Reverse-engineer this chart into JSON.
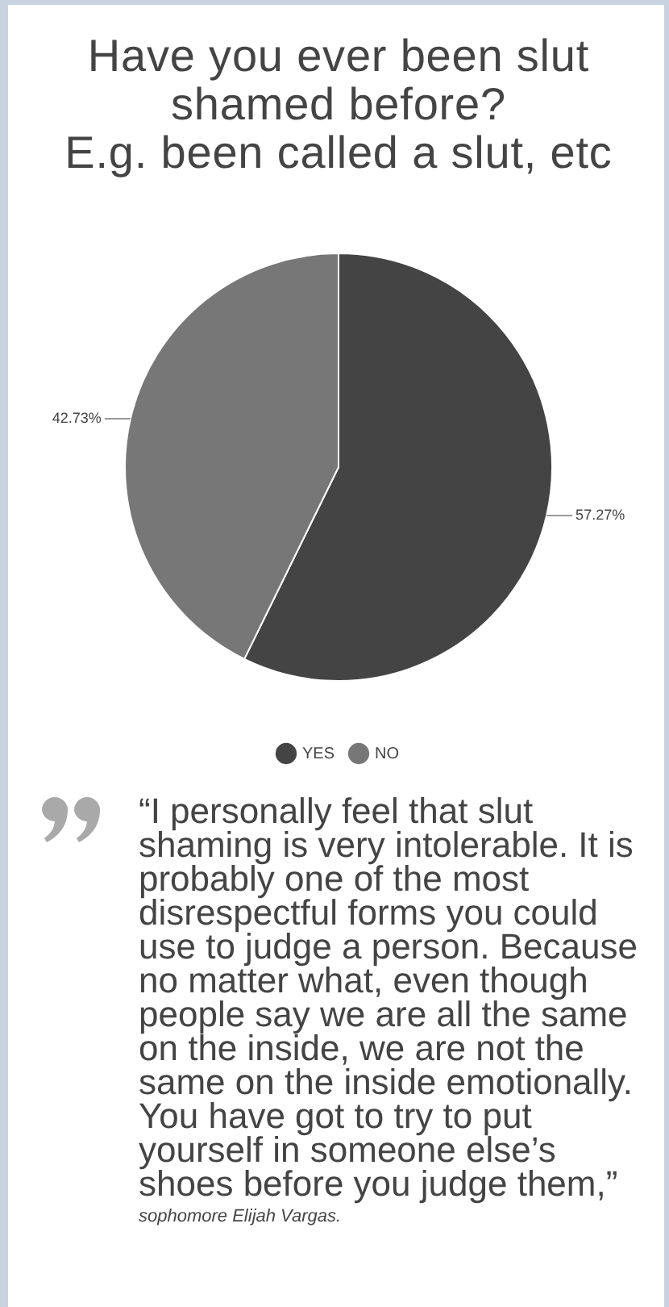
{
  "chart_data": {
    "type": "pie",
    "title": "Have you ever been slut shamed before?\nE.g. been called a slut, etc",
    "categories": [
      "YES",
      "NO"
    ],
    "values": [
      57.27,
      42.73
    ],
    "colors": [
      "#444444",
      "#777777"
    ],
    "value_labels": [
      "57.27%",
      "42.73%"
    ],
    "legend": "bottom",
    "annotations": [
      "“I personally feel that slut shaming is very intolerable. It is probably one of the most disrespectful forms you could use to judge a person. Because no matter what, even though people say we are all the same on the inside, we are not the same on the inside emotionally. You have got to try to put yourself in someone else’s shoes before you judge them,”",
      "sophomore Elijah Vargas."
    ]
  }
}
